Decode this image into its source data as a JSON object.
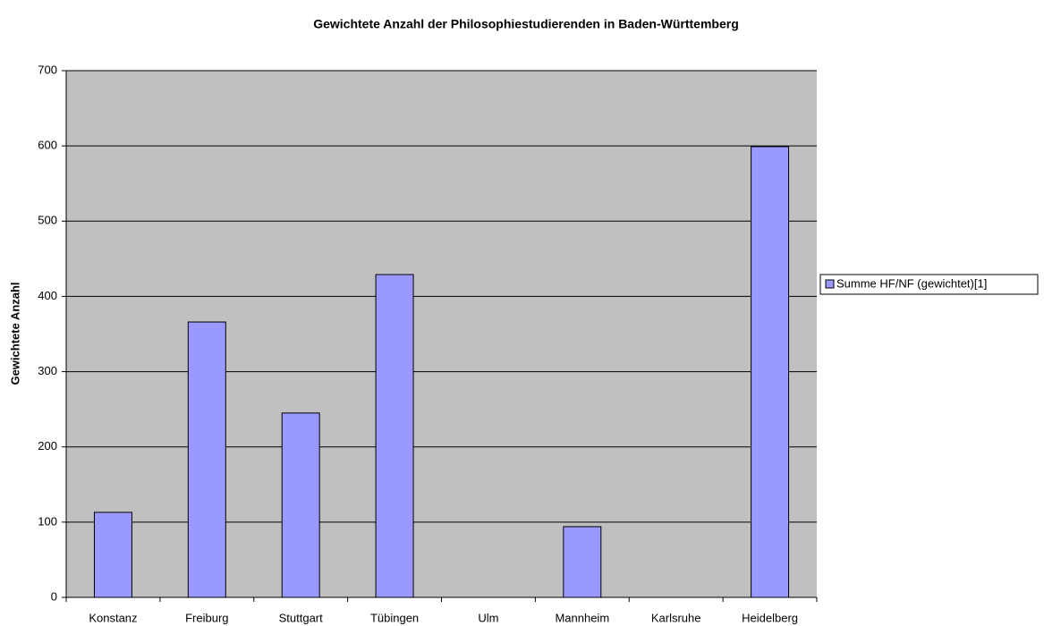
{
  "chart_data": {
    "type": "bar",
    "title": "Gewichtete Anzahl der Philosophiestudierenden in Baden-Württemberg",
    "y_label": "Gewichtete Anzahl",
    "categories": [
      "Konstanz",
      "Freiburg",
      "Stuttgart",
      "Tübingen",
      "Ulm",
      "Mannheim",
      "Karlsruhe",
      "Heidelberg"
    ],
    "series": [
      {
        "name": "Summe HF/NF (gewichtet)[1]",
        "color": "#9999ff",
        "values": [
          113,
          366,
          245,
          429,
          0,
          94,
          0,
          599
        ]
      }
    ],
    "ylim": [
      0,
      700
    ],
    "yticks": [
      0,
      100,
      200,
      300,
      400,
      500,
      600,
      700
    ],
    "grid": true,
    "legend": "right"
  }
}
